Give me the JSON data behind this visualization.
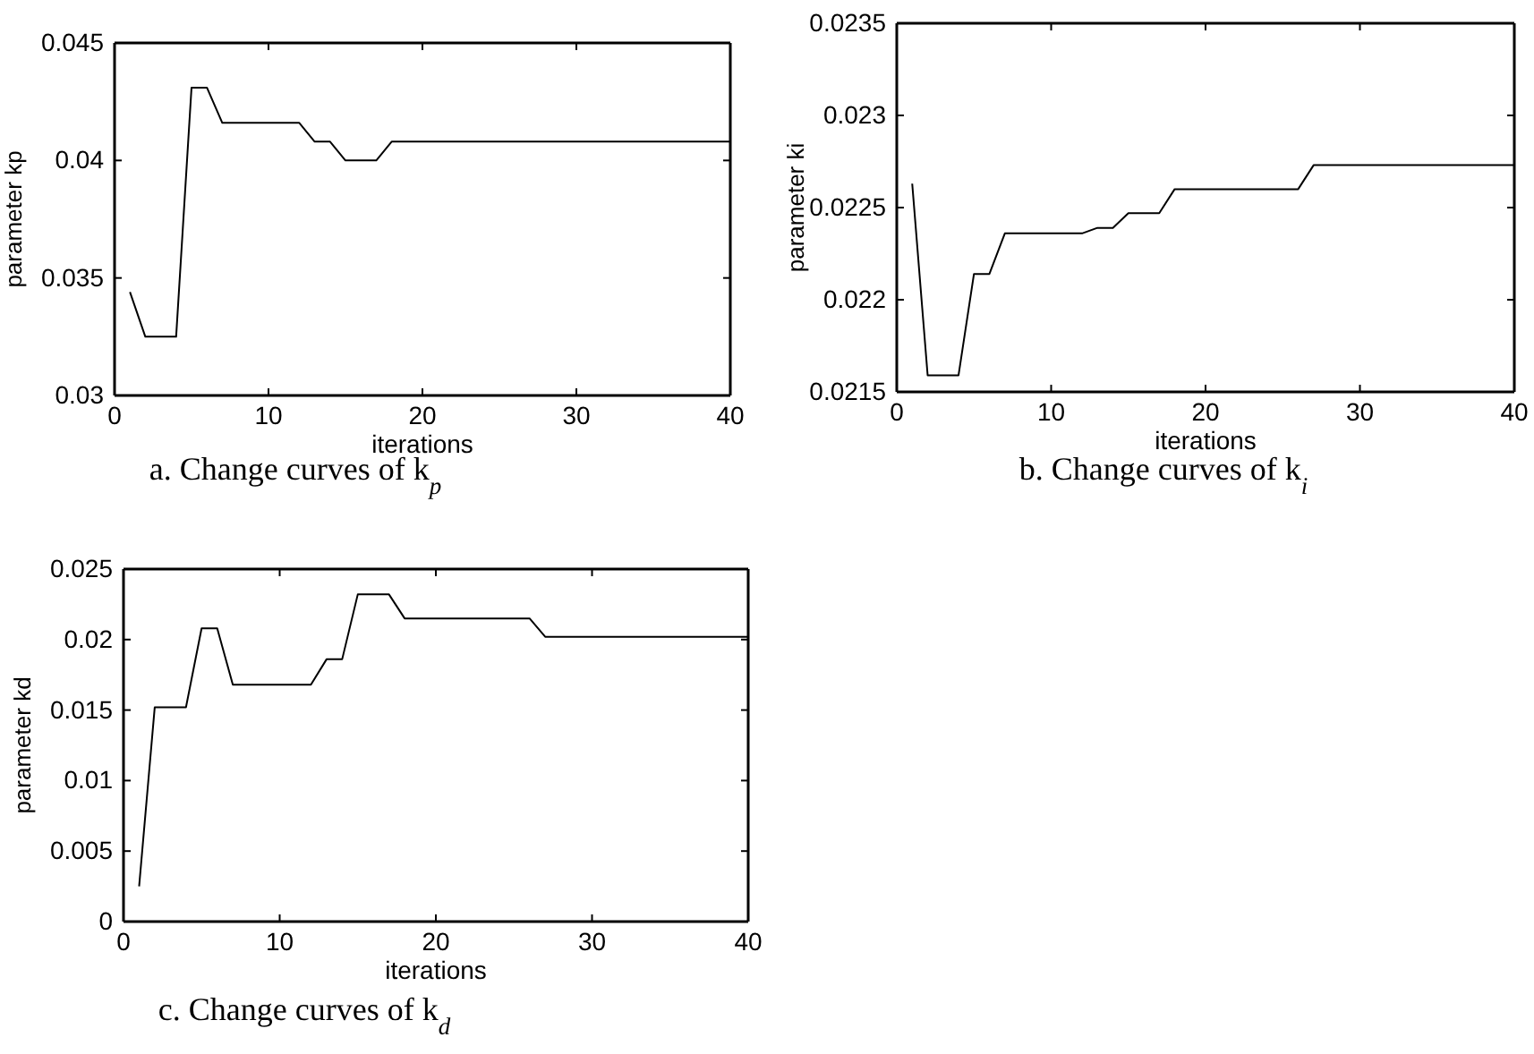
{
  "chart_data": [
    {
      "type": "line",
      "title": "a. Change curves of k$_{p}$",
      "xlabel": "iterations",
      "ylabel": "parameter kp",
      "x": [
        1,
        2,
        3,
        4,
        5,
        6,
        7,
        8,
        9,
        10,
        11,
        12,
        13,
        14,
        15,
        16,
        17,
        18,
        19,
        20,
        21,
        22,
        23,
        24,
        25,
        26,
        27,
        28,
        29,
        30,
        31,
        32,
        33,
        34,
        35,
        36,
        37,
        38,
        39,
        40
      ],
      "series": [
        {
          "color": "#000000",
          "values": [
            0.0344,
            0.0325,
            0.0325,
            0.0325,
            0.0431,
            0.0431,
            0.0416,
            0.0416,
            0.0416,
            0.0416,
            0.0416,
            0.0416,
            0.0408,
            0.0408,
            0.04,
            0.04,
            0.04,
            0.0408,
            0.0408,
            0.0408,
            0.0408,
            0.0408,
            0.0408,
            0.0408,
            0.0408,
            0.0408,
            0.0408,
            0.0408,
            0.0408,
            0.0408,
            0.0408,
            0.0408,
            0.0408,
            0.0408,
            0.0408,
            0.0408,
            0.0408,
            0.0408,
            0.0408,
            0.0408
          ]
        }
      ],
      "xlim": [
        0,
        40
      ],
      "xticks": [
        0,
        10,
        20,
        30,
        40
      ],
      "ylim": [
        0.03,
        0.045
      ],
      "yticks": [
        0.03,
        0.035,
        0.04,
        0.045
      ]
    },
    {
      "type": "line",
      "title": "b. Change curves of k$_{i}$",
      "xlabel": "iterations",
      "ylabel": "parameter ki",
      "x": [
        1,
        2,
        3,
        4,
        5,
        6,
        7,
        8,
        9,
        10,
        11,
        12,
        13,
        14,
        15,
        16,
        17,
        18,
        19,
        20,
        21,
        22,
        23,
        24,
        25,
        26,
        27,
        28,
        29,
        30,
        31,
        32,
        33,
        34,
        35,
        36,
        37,
        38,
        39,
        40
      ],
      "series": [
        {
          "color": "#000000",
          "values": [
            0.02263,
            0.02159,
            0.02159,
            0.02159,
            0.02214,
            0.02214,
            0.02236,
            0.02236,
            0.02236,
            0.02236,
            0.02236,
            0.02236,
            0.02239,
            0.02239,
            0.02247,
            0.02247,
            0.02247,
            0.0226,
            0.0226,
            0.0226,
            0.0226,
            0.0226,
            0.0226,
            0.0226,
            0.0226,
            0.0226,
            0.02273,
            0.02273,
            0.02273,
            0.02273,
            0.02273,
            0.02273,
            0.02273,
            0.02273,
            0.02273,
            0.02273,
            0.02273,
            0.02273,
            0.02273,
            0.02273
          ]
        }
      ],
      "xlim": [
        0,
        40
      ],
      "xticks": [
        0,
        10,
        20,
        30,
        40
      ],
      "ylim": [
        0.0215,
        0.0235
      ],
      "yticks": [
        0.0215,
        0.022,
        0.0225,
        0.023,
        0.0235
      ]
    },
    {
      "type": "line",
      "title": "c. Change curves of k$_{d}$",
      "xlabel": "iterations",
      "ylabel": "parameter kd",
      "x": [
        1,
        2,
        3,
        4,
        5,
        6,
        7,
        8,
        9,
        10,
        11,
        12,
        13,
        14,
        15,
        16,
        17,
        18,
        19,
        20,
        21,
        22,
        23,
        24,
        25,
        26,
        27,
        28,
        29,
        30,
        31,
        32,
        33,
        34,
        35,
        36,
        37,
        38,
        39,
        40
      ],
      "series": [
        {
          "color": "#000000",
          "values": [
            0.0025,
            0.0152,
            0.0152,
            0.0152,
            0.0208,
            0.0208,
            0.0168,
            0.0168,
            0.0168,
            0.0168,
            0.0168,
            0.0168,
            0.0186,
            0.0186,
            0.0232,
            0.0232,
            0.0232,
            0.0215,
            0.0215,
            0.0215,
            0.0215,
            0.0215,
            0.0215,
            0.0215,
            0.0215,
            0.0215,
            0.0202,
            0.0202,
            0.0202,
            0.0202,
            0.0202,
            0.0202,
            0.0202,
            0.0202,
            0.0202,
            0.0202,
            0.0202,
            0.0202,
            0.0202,
            0.0202
          ]
        }
      ],
      "xlim": [
        0,
        40
      ],
      "xticks": [
        0,
        10,
        20,
        30,
        40
      ],
      "ylim": [
        0,
        0.025
      ],
      "yticks": [
        0,
        0.005,
        0.01,
        0.015,
        0.02,
        0.025
      ]
    }
  ]
}
